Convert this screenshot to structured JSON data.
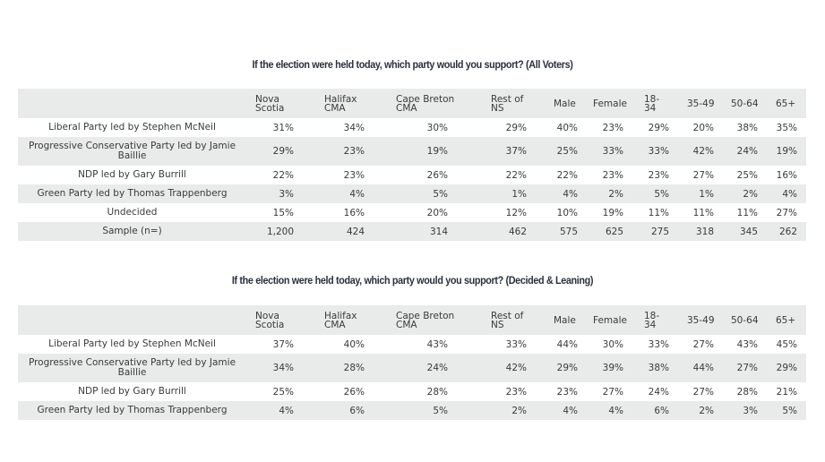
{
  "columns": [
    "Nova Scotia",
    "Halifax CMA",
    "Cape Breton CMA",
    "Rest of NS",
    "Male",
    "Female",
    "18-34",
    "35-49",
    "50-64",
    "65+"
  ],
  "header_lines": [
    [
      "Nova",
      "Scotia"
    ],
    [
      "Halifax",
      "CMA"
    ],
    [
      "Cape Breton",
      "CMA"
    ],
    [
      "Rest of",
      "NS"
    ],
    [
      "Male"
    ],
    [
      "Female"
    ],
    [
      "18-",
      "34"
    ],
    [
      "35-49"
    ],
    [
      "50-64"
    ],
    [
      "65+"
    ]
  ],
  "tables": [
    {
      "title": "If the election were held today, which party would you support? (All Voters)",
      "rows": [
        {
          "label": "Liberal Party led by Stephen McNeil",
          "values": [
            "31%",
            "34%",
            "30%",
            "29%",
            "40%",
            "23%",
            "29%",
            "20%",
            "38%",
            "35%"
          ]
        },
        {
          "label": "Progressive Conservative Party led by Jamie Baillie",
          "values": [
            "29%",
            "23%",
            "19%",
            "37%",
            "25%",
            "33%",
            "33%",
            "42%",
            "24%",
            "19%"
          ]
        },
        {
          "label": "NDP led by Gary Burrill",
          "values": [
            "22%",
            "23%",
            "26%",
            "22%",
            "22%",
            "23%",
            "23%",
            "27%",
            "25%",
            "16%"
          ]
        },
        {
          "label": "Green Party led by Thomas Trappenberg",
          "values": [
            "3%",
            "4%",
            "5%",
            "1%",
            "4%",
            "2%",
            "5%",
            "1%",
            "2%",
            "4%"
          ]
        },
        {
          "label": "Undecided",
          "values": [
            "15%",
            "16%",
            "20%",
            "12%",
            "10%",
            "19%",
            "11%",
            "11%",
            "11%",
            "27%"
          ]
        },
        {
          "label": "Sample (n=)",
          "values": [
            "1,200",
            "424",
            "314",
            "462",
            "575",
            "625",
            "275",
            "318",
            "345",
            "262"
          ]
        }
      ]
    },
    {
      "title": "If the election were held today, which party would you support? (Decided & Leaning)",
      "rows": [
        {
          "label": "Liberal Party led by Stephen McNeil",
          "values": [
            "37%",
            "40%",
            "43%",
            "33%",
            "44%",
            "30%",
            "33%",
            "27%",
            "43%",
            "45%"
          ]
        },
        {
          "label": "Progressive Conservative Party led by Jamie Baillie",
          "values": [
            "34%",
            "28%",
            "24%",
            "42%",
            "29%",
            "39%",
            "38%",
            "44%",
            "27%",
            "29%"
          ]
        },
        {
          "label": "NDP led by Gary Burrill",
          "values": [
            "25%",
            "26%",
            "28%",
            "23%",
            "23%",
            "27%",
            "24%",
            "27%",
            "28%",
            "21%"
          ]
        },
        {
          "label": "Green Party led by Thomas Trappenberg",
          "values": [
            "4%",
            "6%",
            "5%",
            "2%",
            "4%",
            "4%",
            "6%",
            "2%",
            "3%",
            "5%"
          ]
        }
      ]
    }
  ]
}
